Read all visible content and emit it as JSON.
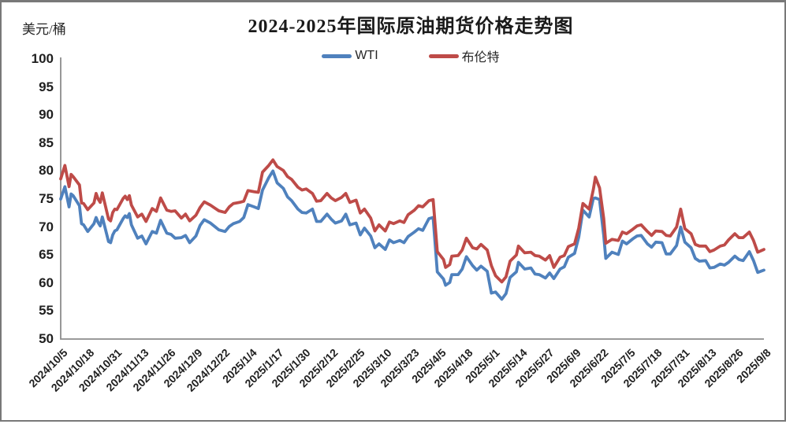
{
  "chart_data": {
    "type": "line",
    "title": "2024-2025年国际原油期货价格走势图",
    "unit_label": "美元/桶",
    "ylim": [
      50,
      100
    ],
    "y_ticks": [
      50,
      55,
      60,
      65,
      70,
      75,
      80,
      85,
      90,
      95,
      100
    ],
    "x_domain": [
      0,
      338
    ],
    "x_tick_positions": [
      0,
      13,
      26,
      39,
      52,
      65,
      78,
      91,
      104,
      117,
      130,
      143,
      156,
      169,
      182,
      195,
      208,
      221,
      234,
      247,
      260,
      273,
      286,
      299,
      312,
      325,
      338
    ],
    "x_tick_labels": [
      "2024/10/5",
      "2024/10/18",
      "2024/10/31",
      "2024/11/13",
      "2024/11/26",
      "2024/12/9",
      "2024/12/22",
      "2025/1/4",
      "2025/1/17",
      "2025/1/30",
      "2025/2/12",
      "2025/2/25",
      "2025/3/10",
      "2025/3/23",
      "2025/4/5",
      "2025/4/18",
      "2025/5/1",
      "2025/5/14",
      "2025/5/27",
      "2025/6/9",
      "2025/6/22",
      "2025/7/5",
      "2025/7/18",
      "2025/7/31",
      "2025/8/13",
      "2025/8/26",
      "2025/9/8"
    ],
    "grid": false,
    "legend_position": "top-center",
    "axis_color": "#8C8C8C",
    "text_color": "#262626",
    "x": [
      0,
      2,
      4,
      5,
      6,
      9,
      10,
      11,
      13,
      16,
      17,
      18,
      19,
      20,
      23,
      24,
      25,
      26,
      27,
      30,
      31,
      32,
      33,
      34,
      37,
      39,
      41,
      44,
      46,
      48,
      51,
      53,
      55,
      58,
      60,
      62,
      65,
      67,
      69,
      72,
      74,
      76,
      79,
      81,
      83,
      86,
      88,
      90,
      93,
      95,
      97,
      100,
      102,
      104,
      107,
      109,
      111,
      114,
      116,
      118,
      121,
      123,
      125,
      128,
      130,
      132,
      135,
      137,
      139,
      142,
      144,
      146,
      149,
      151,
      153,
      156,
      158,
      160,
      163,
      165,
      167,
      170,
      172,
      174,
      177,
      179,
      181,
      184,
      185,
      187,
      188,
      191,
      193,
      195,
      198,
      200,
      202,
      205,
      207,
      209,
      212,
      214,
      216,
      219,
      220,
      223,
      226,
      228,
      230,
      233,
      235,
      237,
      240,
      242,
      244,
      247,
      249,
      251,
      254,
      256,
      257,
      259,
      261,
      262,
      265,
      268,
      270,
      272,
      275,
      277,
      279,
      282,
      284,
      286,
      289,
      291,
      293,
      296,
      298,
      300,
      303,
      305,
      307,
      310,
      312,
      314,
      317,
      319,
      321,
      324,
      326,
      328,
      331,
      333,
      335,
      338
    ],
    "series": [
      {
        "name": "WTI",
        "color": "#4F81BD",
        "values": [
          75.0,
          77.2,
          73.6,
          75.9,
          75.6,
          73.8,
          70.6,
          70.4,
          69.2,
          70.6,
          71.7,
          70.8,
          70.2,
          71.8,
          67.4,
          67.2,
          68.6,
          69.3,
          69.5,
          71.5,
          72.0,
          71.7,
          72.4,
          70.4,
          68.0,
          68.4,
          67.0,
          69.2,
          68.9,
          71.2,
          68.9,
          68.7,
          68.0,
          68.1,
          68.5,
          67.2,
          68.4,
          70.3,
          71.3,
          70.7,
          70.1,
          69.5,
          69.2,
          70.1,
          70.6,
          71.0,
          71.7,
          74.0,
          73.6,
          73.3,
          76.6,
          78.8,
          80.0,
          77.9,
          76.9,
          75.4,
          74.7,
          73.2,
          72.6,
          72.5,
          73.2,
          71.0,
          71.0,
          72.3,
          71.4,
          70.7,
          71.1,
          72.3,
          70.4,
          70.7,
          68.6,
          69.8,
          68.4,
          66.3,
          67.0,
          66.0,
          67.7,
          67.2,
          67.6,
          67.2,
          68.3,
          69.1,
          69.7,
          69.4,
          71.5,
          71.7,
          62.0,
          60.7,
          59.6,
          60.1,
          61.5,
          61.5,
          62.5,
          64.7,
          63.1,
          62.3,
          63.0,
          62.1,
          58.2,
          58.4,
          57.1,
          58.1,
          61.0,
          62.0,
          63.7,
          62.5,
          62.7,
          61.6,
          61.5,
          60.9,
          61.8,
          60.8,
          62.5,
          62.9,
          64.6,
          65.3,
          68.2,
          73.0,
          71.8,
          75.1,
          75.2,
          74.9,
          68.5,
          64.4,
          65.5,
          65.1,
          67.5,
          67.0,
          67.9,
          68.4,
          68.5,
          67.0,
          66.4,
          67.3,
          67.2,
          65.2,
          65.2,
          66.7,
          70.0,
          67.3,
          66.3,
          64.4,
          63.9,
          64.0,
          62.7,
          62.8,
          63.4,
          63.2,
          63.7,
          64.8,
          64.2,
          64.0,
          65.6,
          64.0,
          61.9,
          62.3
        ]
      },
      {
        "name": "布伦特",
        "color": "#BE4B48",
        "values": [
          78.6,
          81.0,
          77.2,
          79.4,
          79.0,
          77.5,
          74.3,
          74.2,
          73.1,
          74.3,
          76.0,
          75.0,
          74.4,
          76.1,
          71.4,
          71.1,
          72.6,
          73.2,
          73.1,
          75.1,
          75.5,
          74.9,
          75.6,
          73.9,
          71.8,
          72.3,
          71.0,
          73.3,
          72.8,
          75.2,
          73.0,
          72.8,
          72.9,
          71.6,
          72.3,
          71.1,
          72.1,
          73.5,
          74.5,
          73.9,
          73.4,
          72.9,
          72.6,
          73.6,
          74.2,
          74.4,
          74.6,
          76.5,
          76.3,
          76.2,
          79.8,
          81.0,
          82.0,
          80.8,
          80.1,
          79.0,
          78.5,
          77.1,
          76.6,
          76.8,
          76.0,
          74.6,
          74.7,
          76.0,
          75.2,
          74.7,
          75.3,
          76.0,
          74.4,
          74.8,
          72.5,
          73.2,
          71.6,
          69.3,
          70.4,
          69.3,
          70.9,
          70.6,
          71.1,
          70.8,
          72.2,
          73.0,
          73.8,
          73.6,
          74.7,
          74.9,
          65.6,
          64.2,
          62.8,
          63.3,
          64.8,
          64.9,
          65.9,
          68.0,
          66.3,
          66.1,
          66.9,
          65.9,
          63.1,
          61.3,
          60.2,
          61.1,
          63.9,
          65.0,
          66.6,
          65.4,
          65.5,
          64.9,
          64.8,
          64.1,
          64.9,
          62.8,
          64.6,
          64.9,
          66.5,
          67.0,
          69.8,
          74.2,
          73.2,
          76.7,
          78.9,
          77.0,
          71.5,
          67.1,
          67.8,
          67.6,
          69.1,
          68.8,
          69.6,
          70.2,
          70.4,
          69.2,
          68.5,
          69.3,
          69.2,
          68.5,
          68.4,
          70.0,
          73.2,
          69.7,
          68.8,
          66.9,
          66.6,
          66.6,
          65.6,
          65.9,
          66.6,
          66.8,
          67.7,
          68.8,
          68.1,
          68.1,
          69.1,
          67.6,
          65.5,
          66.0
        ]
      }
    ]
  }
}
